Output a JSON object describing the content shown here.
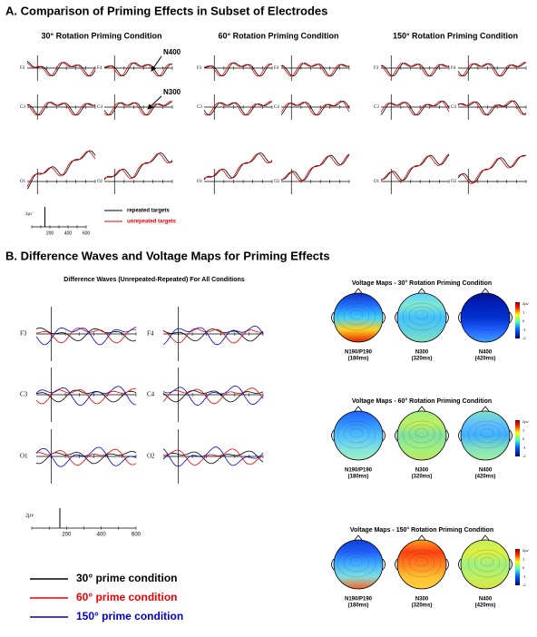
{
  "sectionA": {
    "title": "A. Comparison of Priming Effects in Subset of Electrodes",
    "panels": [
      {
        "title": "30° Rotation Priming Condition"
      },
      {
        "title": "60° Rotation Priming Condition"
      },
      {
        "title": "150° Rotation Priming Condition"
      }
    ],
    "electrodes": [
      "F3",
      "F4",
      "C3",
      "C4",
      "O1",
      "O2"
    ],
    "annotations": [
      "N400",
      "N300"
    ],
    "scale": {
      "label": "2μv",
      "ticks": [
        200,
        400,
        600
      ]
    },
    "legend": [
      "repeated targets",
      "unrepeated targets"
    ]
  },
  "sectionB": {
    "title": "B. Difference Waves and Voltage Maps for Priming Effects",
    "diffTitle": "Difference Waves (Unrepeated-Repeated) For All Conditions",
    "electrodes": [
      "F3",
      "F4",
      "C3",
      "C4",
      "O1",
      "O2"
    ],
    "scale": {
      "label": "2μv",
      "ticks": [
        200,
        400,
        600
      ]
    },
    "legend": [
      "30° prime condition",
      "60° prime condition",
      "150° prime condition"
    ],
    "maps": [
      {
        "title": "Voltage Maps - 30° Rotation Priming Condition",
        "colorbar": [
          "2μv",
          "1",
          "0",
          "-1",
          "-2"
        ],
        "components": [
          {
            "name": "N190/P190",
            "time": "(180ms)"
          },
          {
            "name": "N300",
            "time": "(320ms)"
          },
          {
            "name": "N400",
            "time": "(420ms)"
          }
        ]
      },
      {
        "title": "Voltage Maps - 60° Rotation Priming Condition",
        "colorbar": [
          "2μv",
          "1",
          "0",
          "-1",
          "-2"
        ],
        "components": [
          {
            "name": "N190/P190",
            "time": "(180ms)"
          },
          {
            "name": "N300",
            "time": "(320ms)"
          },
          {
            "name": "N400",
            "time": "(420ms)"
          }
        ]
      },
      {
        "title": "Voltage Maps - 150° Rotation Priming Condition",
        "colorbar": [
          "2μv",
          "1",
          "0",
          "-1",
          "-2"
        ],
        "components": [
          {
            "name": "N190/P190",
            "time": "(180ms)"
          },
          {
            "name": "N300",
            "time": "(320ms)"
          },
          {
            "name": "N400",
            "time": "(420ms)"
          }
        ]
      }
    ]
  }
}
